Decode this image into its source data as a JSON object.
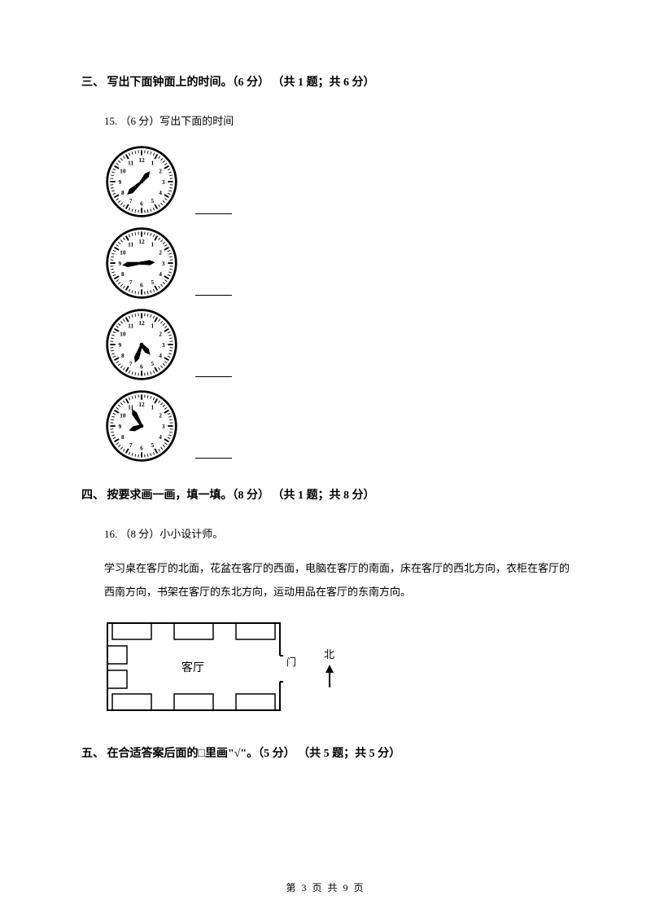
{
  "sections": {
    "three": {
      "title": "三、 写出下面钟面上的时间。（6 分） （共 1 题；共 6 分）",
      "question": "15. （6 分）写出下面的时间",
      "clocks": [
        {
          "hourAngle": 39,
          "minuteAngle": 228,
          "color": "#000000"
        },
        {
          "hourAngle": 87,
          "minuteAngle": 264,
          "color": "#000000"
        },
        {
          "hourAngle": 140,
          "minuteAngle": 200,
          "color": "#000000"
        },
        {
          "hourAngle": 250,
          "minuteAngle": 330,
          "color": "#000000"
        }
      ]
    },
    "four": {
      "title": "四、 按要求画一画，填一填。（8 分） （共 1 题；共 8 分）",
      "question": "16. （8 分）小小设计师。",
      "body": "学习桌在客厅的北面，花盆在客厅的西面，电脑在客厅的南面，床在客厅的西北方向，衣柜在客厅的西南方向，书架在客厅的东北方向，运动用品在客厅的东南方向。",
      "room_label": "客厅",
      "door_label": "门",
      "compass_label": "北"
    },
    "five": {
      "title": "五、 在合适答案后面的□里画\"√\"。（5 分） （共 5 题；共 5 分）"
    }
  },
  "footer": {
    "text": "第 3 页 共 9 页"
  },
  "clock_style": {
    "face_fill": "#ffffff",
    "stroke": "#000000",
    "line_color": "#000000"
  }
}
